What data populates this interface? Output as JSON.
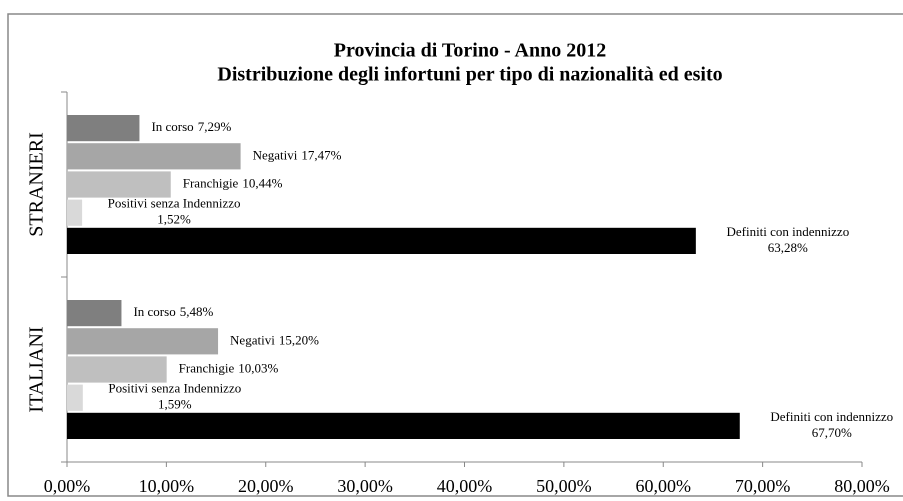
{
  "chart_data": {
    "type": "hbar",
    "title": [
      "Provincia di Torino - Anno 2012",
      "Distribuzione degli infortuni per tipo di nazionalità ed esito"
    ],
    "categories": [
      "STRANIERI",
      "ITALIANI"
    ],
    "series": [
      {
        "name": "In corso",
        "color": "#7f7f7f",
        "values": [
          7.29,
          5.48
        ],
        "value_labels": [
          "7,29%",
          "5,48%"
        ]
      },
      {
        "name": "Negativi",
        "color": "#a6a6a6",
        "values": [
          17.47,
          15.2
        ],
        "value_labels": [
          "17,47%",
          "15,20%"
        ]
      },
      {
        "name": "Franchigie",
        "color": "#bfbfbf",
        "values": [
          10.44,
          10.03
        ],
        "value_labels": [
          "10,44%",
          "10,03%"
        ]
      },
      {
        "name": "Positivi senza Indennizzo",
        "color": "#d9d9d9",
        "values": [
          1.52,
          1.59
        ],
        "value_labels": [
          "1,52%",
          "1,59%"
        ]
      },
      {
        "name": "Definiti con indennizzo",
        "color": "#000000",
        "values": [
          63.28,
          67.7
        ],
        "value_labels": [
          "63,28%",
          "67,70%"
        ]
      }
    ],
    "xlim": [
      0,
      80
    ],
    "xticks": [
      {
        "value": 0,
        "label": "0,00%"
      },
      {
        "value": 10,
        "label": "10,00%"
      },
      {
        "value": 20,
        "label": "20,00%"
      },
      {
        "value": 30,
        "label": "30,00%"
      },
      {
        "value": 40,
        "label": "40,00%"
      },
      {
        "value": 50,
        "label": "50,00%"
      },
      {
        "value": 60,
        "label": "60,00%"
      },
      {
        "value": 70,
        "label": "70,00%"
      },
      {
        "value": 80,
        "label": "80,00%"
      }
    ]
  }
}
